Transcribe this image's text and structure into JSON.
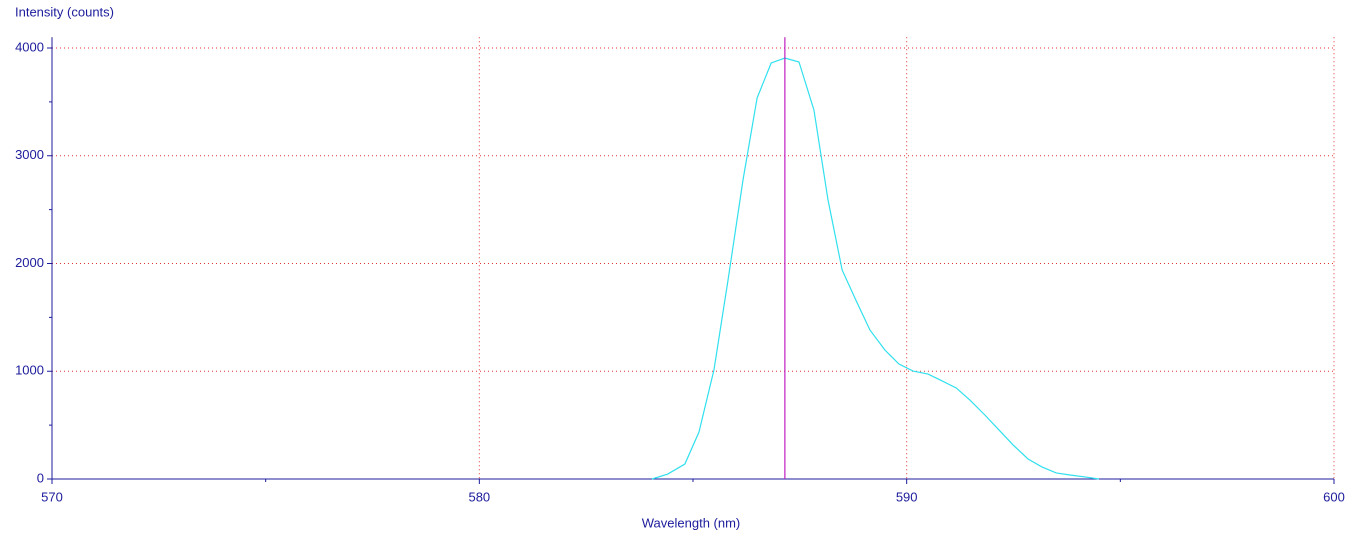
{
  "chart_data": {
    "type": "line",
    "ylabel": "Intensity (counts)",
    "xlabel": "Wavelength (nm)",
    "xlim": [
      570,
      600
    ],
    "xticks": [
      570,
      580,
      590,
      600
    ],
    "xminor": [
      575,
      585,
      595
    ],
    "ylim": [
      0,
      4100
    ],
    "yticks": [
      0,
      1000,
      2000,
      3000,
      4000
    ],
    "yminor": [
      500,
      1500,
      2500,
      3500
    ],
    "grid": true,
    "grid_color": "#e03030",
    "axis_color": "#1c1c9c",
    "marker_x": 587.15,
    "marker_color": "#c020c0",
    "series": [
      {
        "color": "#30e0ee",
        "x": [
          584.04,
          584.41,
          584.81,
          585.14,
          585.49,
          585.82,
          586.17,
          586.5,
          586.83,
          587.15,
          587.48,
          587.83,
          588.16,
          588.49,
          588.81,
          589.14,
          589.49,
          589.82,
          590.15,
          590.5,
          590.83,
          591.16,
          591.48,
          591.83,
          592.16,
          592.49,
          592.84,
          593.17,
          593.5,
          593.82,
          594.17,
          594.5
        ],
        "values": [
          0,
          46,
          139,
          436,
          1012,
          1847,
          2775,
          3536,
          3861,
          3907,
          3870,
          3425,
          2589,
          1940,
          1661,
          1383,
          1197,
          1067,
          1002,
          974,
          910,
          845,
          733,
          594,
          455,
          316,
          186,
          111,
          56,
          37,
          19,
          0
        ]
      }
    ]
  }
}
